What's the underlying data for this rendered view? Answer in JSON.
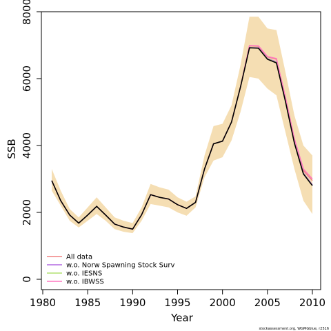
{
  "chart_data": {
    "type": "line",
    "xlabel": "Year",
    "ylabel": "SSB",
    "xlim": [
      1980,
      2011
    ],
    "ylim": [
      -300,
      8000
    ],
    "xticks": [
      1980,
      1985,
      1990,
      1995,
      2000,
      2005,
      2010
    ],
    "yticks": [
      0,
      2000,
      4000,
      6000,
      8000
    ],
    "grid": false,
    "legend_position": "bottom-left",
    "x": [
      1981,
      1982,
      1983,
      1984,
      1985,
      1986,
      1987,
      1988,
      1989,
      1990,
      1991,
      1992,
      1993,
      1994,
      1995,
      1996,
      1997,
      1998,
      1999,
      2000,
      2001,
      2002,
      2003,
      2004,
      2005,
      2006,
      2007,
      2008,
      2009,
      2010
    ],
    "band": {
      "color": "#f5deb3",
      "lower": [
        2650,
        2200,
        1750,
        1550,
        1750,
        1950,
        1750,
        1500,
        1420,
        1380,
        1750,
        2250,
        2200,
        2150,
        2000,
        1900,
        2150,
        3050,
        3550,
        3650,
        4150,
        5000,
        6050,
        6000,
        5700,
        5500,
        4400,
        3300,
        2350,
        1950
      ],
      "upper": [
        3300,
        2650,
        2100,
        1850,
        2150,
        2450,
        2150,
        1850,
        1750,
        1680,
        2150,
        2850,
        2750,
        2680,
        2450,
        2320,
        2480,
        3700,
        4580,
        4650,
        5200,
        6400,
        7850,
        7850,
        7500,
        7450,
        6200,
        4900,
        4000,
        3700
      ]
    },
    "series": [
      {
        "name": "All data",
        "color": "#f08080",
        "values": [
          2950,
          2350,
          1920,
          1680,
          1920,
          2180,
          1920,
          1650,
          1560,
          1500,
          1930,
          2530,
          2450,
          2400,
          2230,
          2120,
          2300,
          3300,
          4050,
          4130,
          4700,
          5750,
          6980,
          6970,
          6650,
          6580,
          5420,
          4150,
          3250,
          2950
        ]
      },
      {
        "name": "w.o. Norw Spawning Stock Surv",
        "color": "#b36ae2",
        "values": [
          2950,
          2350,
          1920,
          1680,
          1920,
          2180,
          1920,
          1650,
          1560,
          1500,
          1930,
          2530,
          2450,
          2400,
          2230,
          2120,
          2300,
          3300,
          4050,
          4130,
          4700,
          5750,
          6930,
          6920,
          6600,
          6500,
          5350,
          4100,
          3180,
          2820
        ]
      },
      {
        "name": "w.o. IESNS",
        "color": "#b0e070",
        "values": [
          2950,
          2350,
          1920,
          1680,
          1920,
          2180,
          1920,
          1650,
          1560,
          1500,
          1930,
          2530,
          2450,
          2400,
          2230,
          2120,
          2300,
          3300,
          4050,
          4130,
          4700,
          5750,
          6920,
          6910,
          6590,
          6480,
          5320,
          4080,
          3160,
          2800
        ]
      },
      {
        "name": "w.o. IBWSS",
        "color": "#ff77c0",
        "values": [
          2950,
          2350,
          1920,
          1680,
          1920,
          2180,
          1920,
          1650,
          1560,
          1500,
          1930,
          2530,
          2450,
          2400,
          2230,
          2120,
          2300,
          3300,
          4050,
          4130,
          4700,
          5750,
          6990,
          6980,
          6660,
          6600,
          5450,
          4200,
          3300,
          3000
        ]
      }
    ],
    "main_line": {
      "color": "#000000",
      "values": [
        2950,
        2350,
        1920,
        1680,
        1920,
        2180,
        1920,
        1650,
        1560,
        1500,
        1930,
        2530,
        2450,
        2400,
        2230,
        2120,
        2300,
        3300,
        4050,
        4130,
        4700,
        5750,
        6920,
        6910,
        6580,
        6470,
        5320,
        4070,
        3150,
        2800
      ]
    }
  },
  "footer": "stockassessment.org, WGMGblue, r2516"
}
